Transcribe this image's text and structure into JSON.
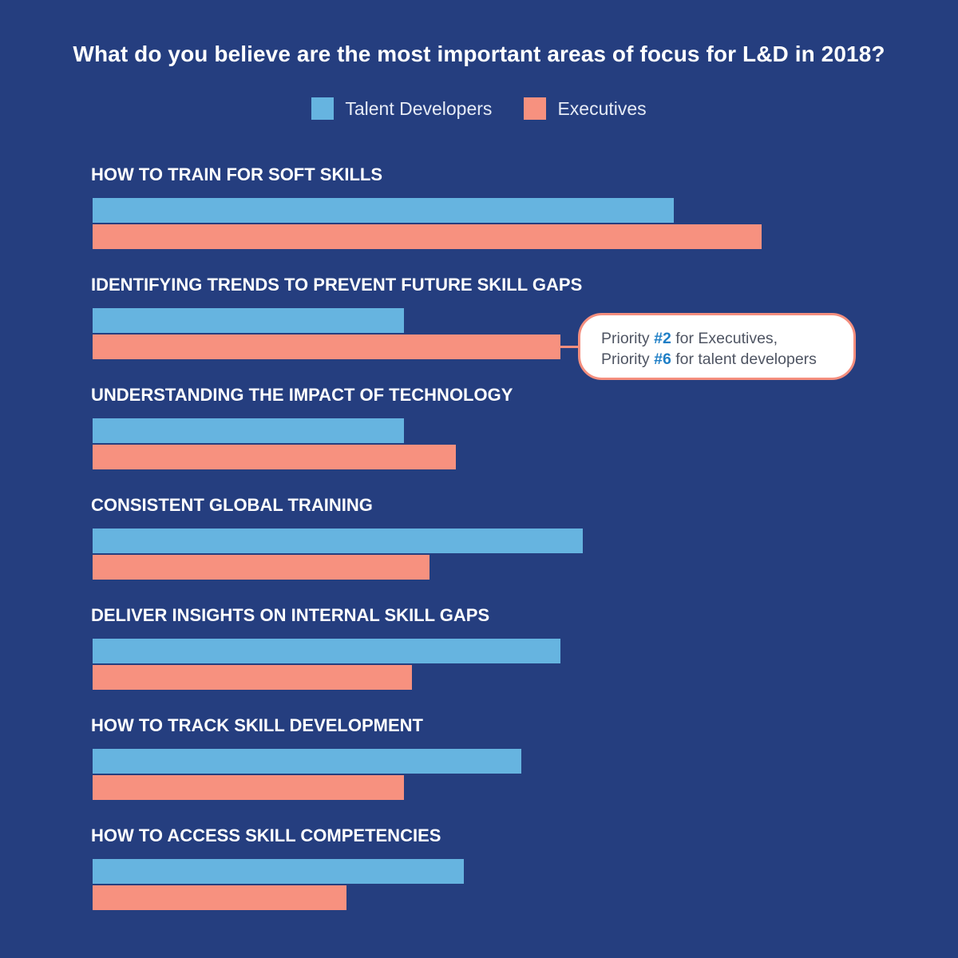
{
  "title": "What do you believe are the most important areas of focus for L&D in 2018?",
  "colors": {
    "background": "#253e7f",
    "talent": "#66b4e0",
    "executives": "#f7917f",
    "callout_border": "#f48e7e",
    "callout_accent": "#1f7fc6"
  },
  "callout": {
    "line1_prefix": "Priority ",
    "line1_rank": "#2",
    "line1_suffix": " for Executives,",
    "line2_prefix": "Priority ",
    "line2_rank": "#6",
    "line2_suffix": " for talent developers"
  },
  "chart_data": {
    "type": "bar",
    "orientation": "horizontal",
    "legend_position": "top-center",
    "grid": false,
    "categories": [
      "HOW TO TRAIN FOR SOFT SKILLS",
      "IDENTIFYING TRENDS TO PREVENT FUTURE SKILL GAPS",
      "UNDERSTANDING THE IMPACT OF TECHNOLOGY",
      "CONSISTENT GLOBAL TRAINING",
      "DELIVER INSIGHTS ON INTERNAL SKILL GAPS",
      "HOW TO TRACK SKILL DEVELOPMENT",
      "HOW TO ACCESS SKILL COMPETENCIES"
    ],
    "series": [
      {
        "name": "Talent Developers",
        "values": [
          728,
          390,
          390,
          614,
          586,
          537,
          465
        ]
      },
      {
        "name": "Executives",
        "values": [
          838,
          586,
          455,
          422,
          400,
          390,
          318
        ]
      }
    ],
    "xlim": [
      0,
      1000
    ]
  }
}
